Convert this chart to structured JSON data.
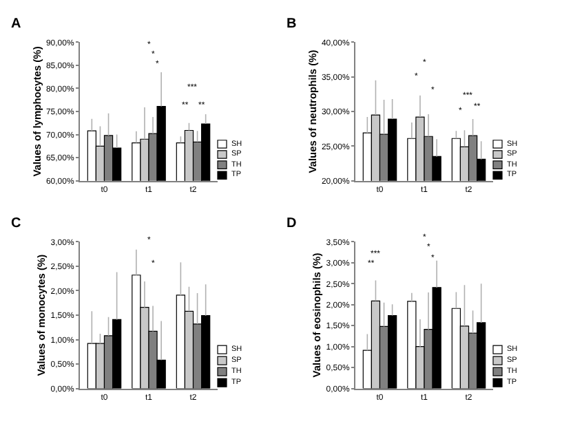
{
  "chart_data": [
    {
      "type": "bar",
      "title": "A",
      "ylabel": "Values of lymphocytes (%)",
      "categories": [
        "t0",
        "t1",
        "t2"
      ],
      "legend": "bottom right",
      "ylim": [
        60,
        90
      ],
      "yticks": [
        {
          "value": 60,
          "label": "60,00%"
        },
        {
          "value": 65,
          "label": "65,00%"
        },
        {
          "value": 70,
          "label": "70,00%"
        },
        {
          "value": 75,
          "label": "75,00%"
        },
        {
          "value": 80,
          "label": "80,00%"
        },
        {
          "value": 85,
          "label": "85,00%"
        },
        {
          "value": 90,
          "label": "90,00%"
        }
      ],
      "series": [
        {
          "name": "SH",
          "color": "#ffffff",
          "values": [
            70.8,
            68.2,
            68.2
          ],
          "errors": [
            [
              70.8,
              73.4
            ],
            [
              68.2,
              70.7
            ],
            [
              68.2,
              69.6
            ]
          ]
        },
        {
          "name": "SP",
          "color": "#c8c8c8",
          "values": [
            67.5,
            69.0,
            70.9
          ],
          "errors": [
            [
              67.5,
              71.8
            ],
            [
              69.0,
              75.9
            ],
            [
              70.9,
              72.5
            ]
          ]
        },
        {
          "name": "TH",
          "color": "#808080",
          "values": [
            69.8,
            70.2,
            68.4
          ],
          "errors": [
            [
              69.8,
              74.6
            ],
            [
              70.2,
              73.8
            ],
            [
              68.4,
              70.8
            ]
          ]
        },
        {
          "name": "TP",
          "color": "#000000",
          "values": [
            67.1,
            76.1,
            72.3
          ],
          "errors": [
            [
              67.1,
              70.0
            ],
            [
              76.1,
              83.5
            ],
            [
              72.3,
              74.4
            ]
          ]
        }
      ],
      "annotations": [
        "*",
        "*",
        "*",
        "***",
        "**",
        "**"
      ]
    },
    {
      "type": "bar",
      "title": "B",
      "ylabel": "Values of neutrophils (%)",
      "categories": [
        "t0",
        "t1",
        "t2"
      ],
      "legend": "bottom right",
      "ylim": [
        20,
        40
      ],
      "yticks": [
        {
          "value": 20,
          "label": "20,00%"
        },
        {
          "value": 25,
          "label": "25,00%"
        },
        {
          "value": 30,
          "label": "30,00%"
        },
        {
          "value": 35,
          "label": "35,00%"
        },
        {
          "value": 40,
          "label": "40,00%"
        }
      ],
      "series": [
        {
          "name": "SH",
          "color": "#ffffff",
          "values": [
            26.9,
            26.1,
            26.1
          ],
          "errors": [
            [
              26.9,
              29.2
            ],
            [
              26.1,
              28.4
            ],
            [
              26.1,
              27.2
            ]
          ]
        },
        {
          "name": "SP",
          "color": "#c8c8c8",
          "values": [
            29.5,
            29.2,
            24.9
          ],
          "errors": [
            [
              29.5,
              34.5
            ],
            [
              29.2,
              32.3
            ],
            [
              24.9,
              27.3
            ]
          ]
        },
        {
          "name": "TH",
          "color": "#808080",
          "values": [
            26.7,
            26.4,
            26.5
          ],
          "errors": [
            [
              26.7,
              31.7
            ],
            [
              26.4,
              29.6
            ],
            [
              26.5,
              28.9
            ]
          ]
        },
        {
          "name": "TP",
          "color": "#000000",
          "values": [
            28.9,
            23.5,
            23.1
          ],
          "errors": [
            [
              28.9,
              31.8
            ],
            [
              23.5,
              26.0
            ],
            [
              23.1,
              25.7
            ]
          ]
        }
      ],
      "annotations": [
        "*",
        "*",
        "*",
        "***",
        "*",
        "**"
      ]
    },
    {
      "type": "bar",
      "title": "C",
      "ylabel": "Values of monocytes (%)",
      "categories": [
        "t0",
        "t1",
        "t2"
      ],
      "legend": "bottom right",
      "ylim": [
        0,
        3
      ],
      "yticks": [
        {
          "value": 0,
          "label": "0,00%"
        },
        {
          "value": 0.5,
          "label": "0,50%"
        },
        {
          "value": 1,
          "label": "1,00%"
        },
        {
          "value": 1.5,
          "label": "1,50%"
        },
        {
          "value": 2,
          "label": "2,00%"
        },
        {
          "value": 2.5,
          "label": "2,50%"
        },
        {
          "value": 3,
          "label": "3,00%"
        }
      ],
      "series": [
        {
          "name": "SH",
          "color": "#ffffff",
          "values": [
            0.92,
            2.32,
            1.91
          ],
          "errors": [
            [
              0.92,
              1.58
            ],
            [
              2.32,
              2.84
            ],
            [
              1.91,
              2.58
            ]
          ]
        },
        {
          "name": "SP",
          "color": "#c8c8c8",
          "values": [
            0.92,
            1.66,
            1.58
          ],
          "errors": [
            [
              0.92,
              1.12
            ],
            [
              1.66,
              2.19
            ],
            [
              1.58,
              2.08
            ]
          ]
        },
        {
          "name": "TH",
          "color": "#808080",
          "values": [
            1.08,
            1.17,
            1.32
          ],
          "errors": [
            [
              1.08,
              1.46
            ],
            [
              1.17,
              1.69
            ],
            [
              1.32,
              1.95
            ]
          ]
        },
        {
          "name": "TP",
          "color": "#000000",
          "values": [
            1.41,
            0.58,
            1.49
          ],
          "errors": [
            [
              1.41,
              2.38
            ],
            [
              0.58,
              1.38
            ],
            [
              1.49,
              2.13
            ]
          ]
        }
      ],
      "annotations": [
        "*",
        "*"
      ]
    },
    {
      "type": "bar",
      "title": "D",
      "ylabel": "Values of eosinophils (%)",
      "categories": [
        "t0",
        "t1",
        "t2"
      ],
      "legend": "bottom right",
      "ylim": [
        0,
        3.5
      ],
      "yticks": [
        {
          "value": 0,
          "label": "0,00%"
        },
        {
          "value": 0.5,
          "label": "0,50%"
        },
        {
          "value": 1,
          "label": "1,00%"
        },
        {
          "value": 1.5,
          "label": "1,50%"
        },
        {
          "value": 2,
          "label": "2,00%"
        },
        {
          "value": 2.5,
          "label": "2,50%"
        },
        {
          "value": 3,
          "label": "3,00%"
        },
        {
          "value": 3.5,
          "label": "3,50%"
        }
      ],
      "series": [
        {
          "name": "SH",
          "color": "#ffffff",
          "values": [
            0.91,
            2.08,
            1.91
          ],
          "errors": [
            [
              0.91,
              1.3
            ],
            [
              2.08,
              2.28
            ],
            [
              1.91,
              2.3
            ]
          ]
        },
        {
          "name": "SP",
          "color": "#c8c8c8",
          "values": [
            2.09,
            1.0,
            1.49
          ],
          "errors": [
            [
              2.09,
              2.58
            ],
            [
              1.0,
              1.65
            ],
            [
              1.49,
              2.47
            ]
          ]
        },
        {
          "name": "TH",
          "color": "#808080",
          "values": [
            1.48,
            1.41,
            1.32
          ],
          "errors": [
            [
              1.48,
              2.05
            ],
            [
              1.41,
              2.29
            ],
            [
              1.32,
              1.86
            ]
          ]
        },
        {
          "name": "TP",
          "color": "#000000",
          "values": [
            1.74,
            2.41,
            1.57
          ],
          "errors": [
            [
              1.74,
              2.01
            ],
            [
              2.41,
              3.05
            ],
            [
              1.57,
              2.5
            ]
          ]
        }
      ],
      "annotations": [
        "***",
        "**",
        "*",
        "*",
        "*"
      ]
    }
  ]
}
